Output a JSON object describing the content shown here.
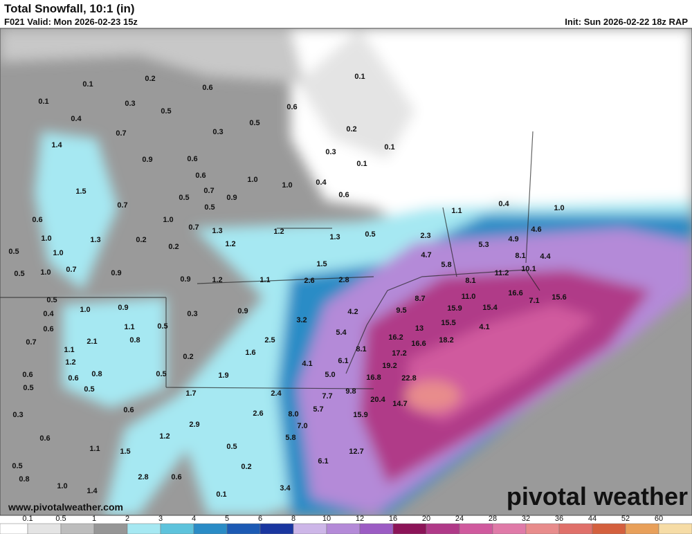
{
  "header": {
    "title": "Total Snowfall, 10:1 (in)",
    "valid": "F021 Valid: Mon 2026-02-23 15z",
    "init": "Init: Sun 2026-02-22 18z RAP"
  },
  "footer": {
    "website": "www.pivotalweather.com",
    "logo": "pivotal weather"
  },
  "colorbar": {
    "labels": [
      0.1,
      0.5,
      1,
      2,
      3,
      4,
      5,
      6,
      8,
      10,
      12,
      16,
      20,
      24,
      28,
      32,
      36,
      44,
      52,
      60
    ],
    "colors": [
      "#ffffff",
      "#e4e4e4",
      "#bdbdbd",
      "#969696",
      "#a6e8f2",
      "#5ec3dc",
      "#2a8cc6",
      "#1c5ab4",
      "#1a36a0",
      "#cdb6e8",
      "#b48ad8",
      "#9c5cc4",
      "#8c1458",
      "#b03a88",
      "#d05a9e",
      "#e07aa8",
      "#e88c8c",
      "#e0706a",
      "#d4603e",
      "#e8a05a",
      "#f6dca6"
    ]
  },
  "map_labels": [
    "0.1",
    "0.2",
    "0.6",
    "0.1",
    "0.3",
    "0.1",
    "0.5",
    "0.6",
    "0.4",
    "0.7",
    "0.3",
    "0.5",
    "0.2",
    "1.4",
    "0.9",
    "0.6",
    "0.3",
    "0.1",
    "0.1",
    "0.6",
    "1.0",
    "1.0",
    "0.4",
    "0.6",
    "1.5",
    "0.5",
    "0.7",
    "0.9",
    "0.7",
    "0.5",
    "0.6",
    "1.0",
    "0.7",
    "1.3",
    "1.2",
    "1.3",
    "0.5",
    "1.0",
    "1.3",
    "0.2",
    "1.2",
    "0.2",
    "0.5",
    "1.0",
    "0.7",
    "1.0",
    "0.9",
    "0.5",
    "1.5",
    "0.9",
    "1.2",
    "1.1",
    "2.6",
    "2.8",
    "0.5",
    "0.4",
    "1.0",
    "0.9",
    "0.9",
    "0.3",
    "4.2",
    "3.2",
    "0.6",
    "1.1",
    "0.5",
    "0.7",
    "2.1",
    "0.8",
    "5.4",
    "2.5",
    "1.1",
    "1.6",
    "0.2",
    "1.2",
    "4.1",
    "6.1",
    "8.1",
    "0.6",
    "0.6",
    "0.8",
    "0.5",
    "1.9",
    "5.0",
    "0.5",
    "0.5",
    "1.7",
    "2.4",
    "7.7",
    "9.8",
    "0.6",
    "5.7",
    "0.3",
    "8.0",
    "2.6",
    "2.9",
    "1.2",
    "7.0",
    "15.9",
    "0.6",
    "5.8",
    "1.1",
    "0.5",
    "1.5",
    "12.7",
    "6.1",
    "0.5",
    "0.2",
    "2.8",
    "0.6",
    "0.8",
    "1.0",
    "1.4",
    "3.4",
    "0.1",
    "0.4",
    "1.0",
    "1.1",
    "4.6",
    "2.3",
    "4.9",
    "5.3",
    "4.7",
    "8.1",
    "4.4",
    "5.8",
    "10.1",
    "11.2",
    "8.1",
    "8.7",
    "11.0",
    "16.6",
    "15.6",
    "7.1",
    "9.5",
    "15.9",
    "15.4",
    "13",
    "15.5",
    "4.1",
    "16.2",
    "18.2",
    "16.6",
    "17.2",
    "19.2",
    "22.8",
    "16.8",
    "20.4",
    "14.7"
  ]
}
